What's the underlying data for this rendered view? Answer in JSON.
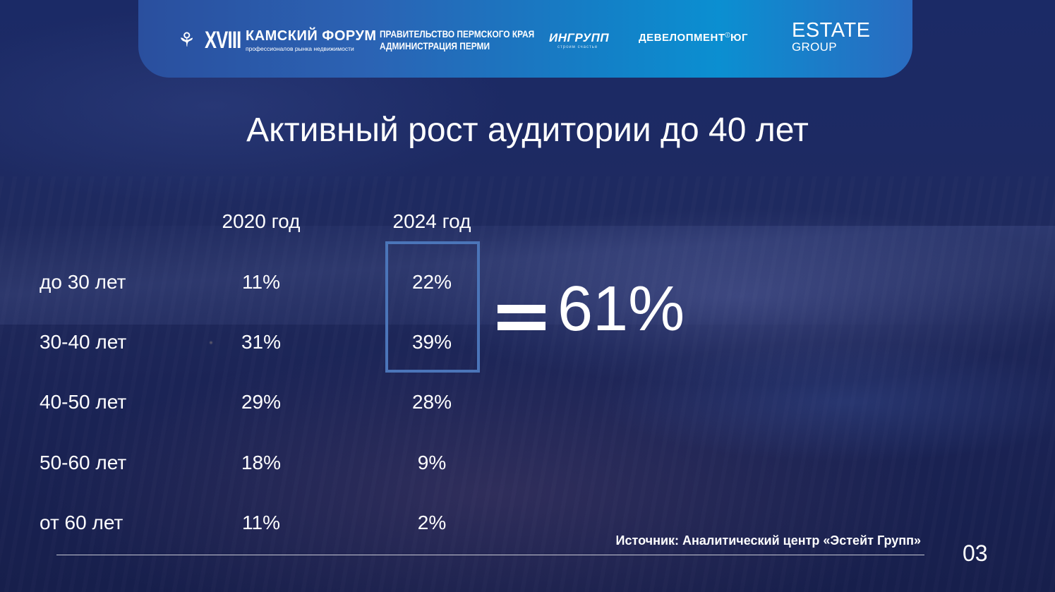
{
  "header": {
    "forum": {
      "roman": "XVIII",
      "title": "КАМСКИЙ ФОРУМ",
      "subtitle": "профессионалов рынка недвижимости"
    },
    "government": {
      "line1": "ПРАВИТЕЛЬСТВО ПЕРМСКОГО КРАЯ",
      "line2": "АДМИНИСТРАЦИЯ ПЕРМИ"
    },
    "ingrupp": {
      "name": "ИНГРУПП",
      "tagline": "строим счастье"
    },
    "development": {
      "name": "ДЕВЕЛОПМЕНТ",
      "suffix": "ЮГ"
    },
    "estate": {
      "name": "ESTATE",
      "group": "GROUP"
    }
  },
  "title": "Активный рост аудитории до 40 лет",
  "table": {
    "columns": [
      "2020 год",
      "2024 год"
    ],
    "rows": [
      {
        "label": "до 30 лет",
        "v2020": "11%",
        "v2024": "22%"
      },
      {
        "label": "30-40 лет",
        "v2020": "31%",
        "v2024": "39%"
      },
      {
        "label": "40-50 лет",
        "v2020": "29%",
        "v2024": "28%"
      },
      {
        "label": "50-60 лет",
        "v2020": "18%",
        "v2024": "9%"
      },
      {
        "label": "от 60 лет",
        "v2020": "11%",
        "v2024": "2%"
      }
    ]
  },
  "total": "61%",
  "source": "Источник: Аналитический центр «Эстейт Групп»",
  "page_number": "03",
  "icons": {
    "forum_mark": "dragonfly-icon",
    "equals": "equals-icon"
  },
  "colors": {
    "header_start": "#2a4f9e",
    "header_end": "#0b8fd1",
    "highlight_border": "#4b75b9",
    "text": "#ffffff"
  }
}
